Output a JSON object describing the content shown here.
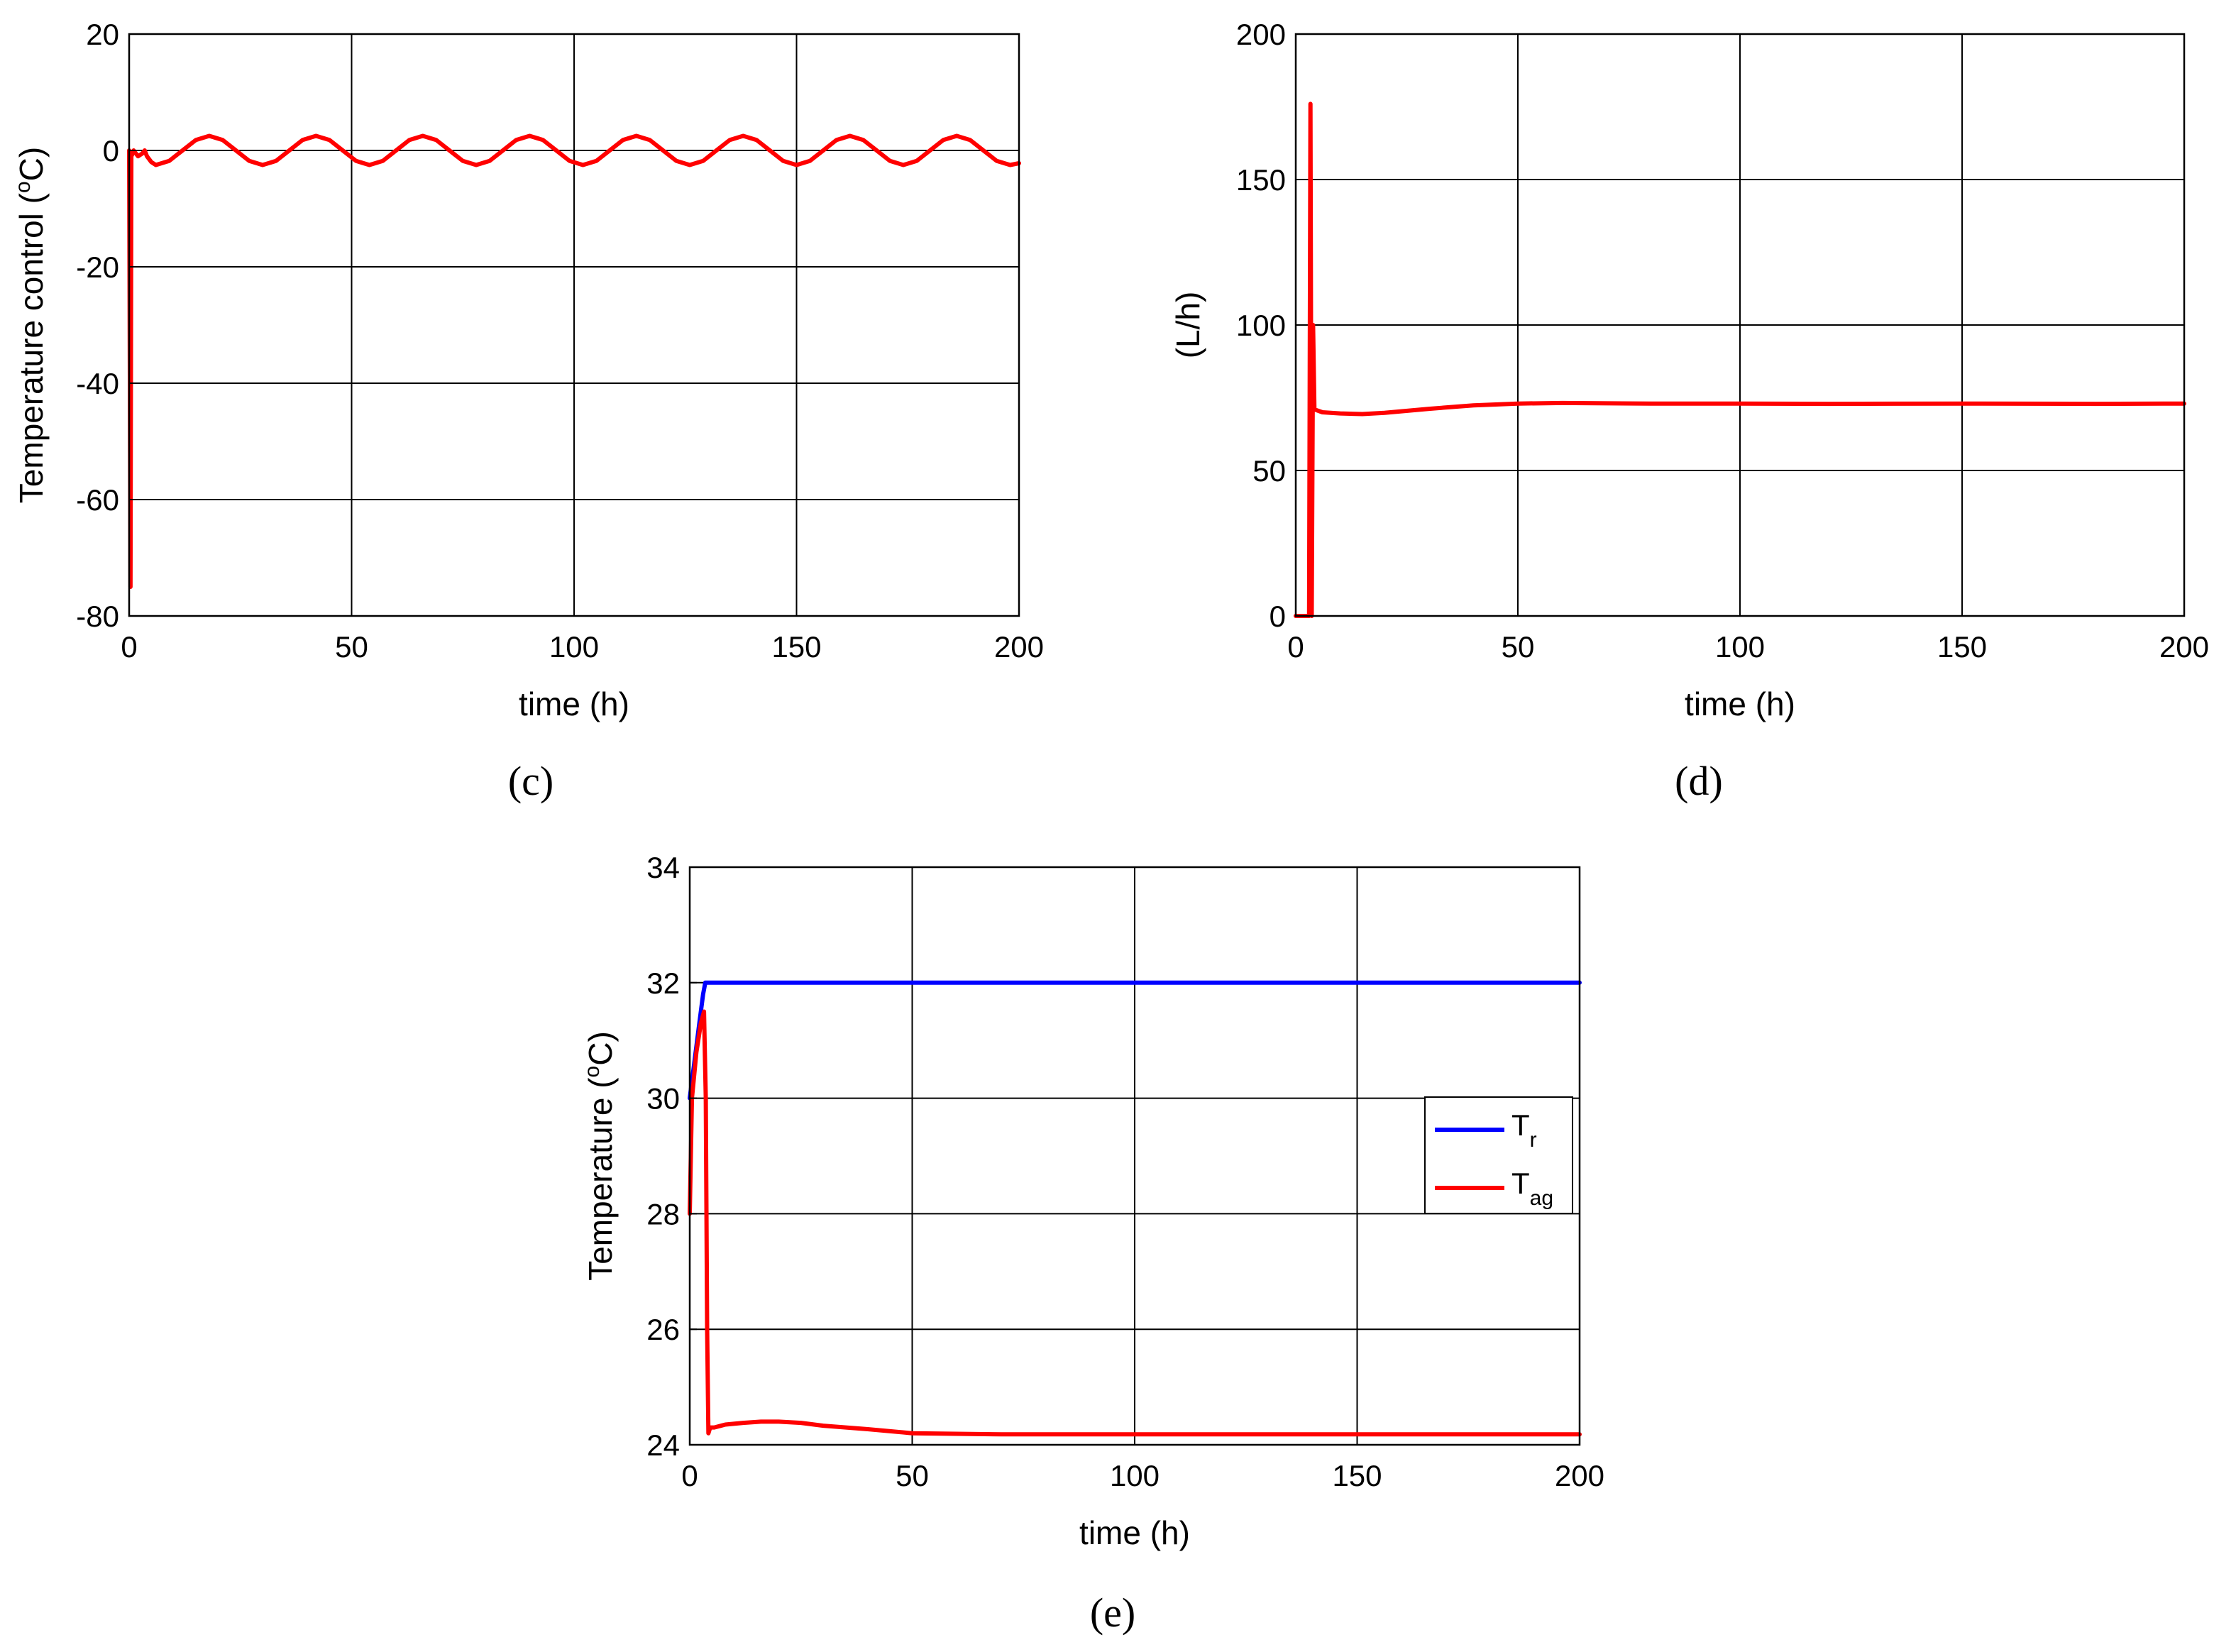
{
  "chart_data": [
    {
      "type": "line",
      "panel_label": "(c)",
      "title": "",
      "xlabel": "time (h)",
      "ylabel": "Temperature control (°C)",
      "ylabel_parts": [
        "Temperature control (",
        "o",
        "C)"
      ],
      "xlim": [
        0,
        200
      ],
      "ylim": [
        -80,
        20
      ],
      "xticks": [
        0,
        50,
        100,
        150,
        200
      ],
      "yticks": [
        -80,
        -60,
        -40,
        -20,
        0,
        20
      ],
      "grid": true,
      "legend": null,
      "series": [
        {
          "color": "#ff0000",
          "x": [
            0,
            0.3,
            0.5,
            0.8,
            1.0,
            2.0,
            3.0,
            3.5,
            4.0,
            5.0,
            6.0,
            9.0,
            12.0,
            15.0,
            18.0,
            21.0,
            24.0,
            27.0,
            30.0,
            33.0,
            36.0,
            39.0,
            42.0,
            45.0,
            48.0,
            51.0,
            54.0,
            57.0,
            60.0,
            63.0,
            66.0,
            69.0,
            72.0,
            75.0,
            78.0,
            81.0,
            84.0,
            87.0,
            90.0,
            93.0,
            96.0,
            99.0,
            102.0,
            105.0,
            108.0,
            111.0,
            114.0,
            117.0,
            120.0,
            123.0,
            126.0,
            129.0,
            132.0,
            135.0,
            138.0,
            141.0,
            144.0,
            147.0,
            150.0,
            153.0,
            156.0,
            159.0,
            162.0,
            165.0,
            168.0,
            171.0,
            174.0,
            177.0,
            180.0,
            183.0,
            186.0,
            189.0,
            192.0,
            195.0,
            198.0,
            200.0
          ],
          "y": [
            0,
            -75,
            -1,
            -0.5,
            0,
            -1,
            -0.5,
            0,
            -1,
            -2,
            -2.5,
            -1.8,
            0,
            1.8,
            2.5,
            1.8,
            0,
            -1.8,
            -2.5,
            -1.8,
            0,
            1.8,
            2.5,
            1.8,
            0,
            -1.8,
            -2.5,
            -1.8,
            0,
            1.8,
            2.5,
            1.8,
            0,
            -1.8,
            -2.5,
            -1.8,
            0,
            1.8,
            2.5,
            1.8,
            0,
            -1.8,
            -2.5,
            -1.8,
            0,
            1.8,
            2.5,
            1.8,
            0,
            -1.8,
            -2.5,
            -1.8,
            0,
            1.8,
            2.5,
            1.8,
            0,
            -1.8,
            -2.5,
            -1.8,
            0,
            1.8,
            2.5,
            1.8,
            0,
            -1.8,
            -2.5,
            -1.8,
            0,
            1.8,
            2.5,
            1.8,
            0,
            -1.8,
            -2.5,
            -2.2
          ]
        }
      ]
    },
    {
      "type": "line",
      "panel_label": "(d)",
      "title": "",
      "xlabel": "time (h)",
      "ylabel": "(L/h)",
      "xlim": [
        0,
        200
      ],
      "ylim": [
        0,
        200
      ],
      "xticks": [
        0,
        50,
        100,
        150,
        200
      ],
      "yticks": [
        0,
        50,
        100,
        150,
        200
      ],
      "grid": true,
      "legend": null,
      "series": [
        {
          "color": "#ff0000",
          "x": [
            0,
            3.0,
            3.3,
            3.6,
            3.9,
            4.2,
            6,
            10,
            15,
            20,
            30,
            40,
            50,
            60,
            80,
            100,
            120,
            150,
            180,
            200
          ],
          "y": [
            0,
            0,
            176,
            0,
            100,
            71,
            70,
            69.6,
            69.4,
            69.8,
            71.2,
            72.4,
            73,
            73.2,
            73,
            73,
            72.9,
            73,
            72.9,
            73
          ]
        }
      ]
    },
    {
      "type": "line",
      "panel_label": "(e)",
      "title": "",
      "xlabel": "time (h)",
      "ylabel": "Temperature (°C)",
      "ylabel_parts": [
        "Temperature (",
        "o",
        "C)"
      ],
      "xlim": [
        0,
        200
      ],
      "ylim": [
        24,
        34
      ],
      "xticks": [
        0,
        50,
        100,
        150,
        200
      ],
      "yticks": [
        24,
        26,
        28,
        30,
        32,
        34
      ],
      "grid": true,
      "legend": "right",
      "series": [
        {
          "name": "Tr",
          "label_main": "T",
          "label_sub": "r",
          "color": "#0000ff",
          "x": [
            0,
            1,
            2,
            3,
            3.5,
            4,
            50,
            100,
            150,
            200
          ],
          "y": [
            30,
            30.6,
            31.2,
            31.8,
            32,
            32,
            32,
            32,
            32,
            32
          ]
        },
        {
          "name": "Tag",
          "label_main": "T",
          "label_sub": "ag",
          "color": "#ff0000",
          "x": [
            0,
            0.5,
            1.5,
            2.5,
            3.2,
            3.6,
            3.9,
            4.2,
            4.6,
            5.5,
            8,
            12,
            16,
            20,
            25,
            30,
            40,
            50,
            70,
            100,
            130,
            150,
            180,
            200
          ],
          "y": [
            28,
            30,
            30.8,
            31.3,
            31.5,
            30,
            26,
            24.2,
            24.3,
            24.3,
            24.35,
            24.38,
            24.4,
            24.4,
            24.38,
            24.33,
            24.27,
            24.2,
            24.18,
            24.18,
            24.18,
            24.18,
            24.18,
            24.18
          ]
        }
      ]
    }
  ]
}
